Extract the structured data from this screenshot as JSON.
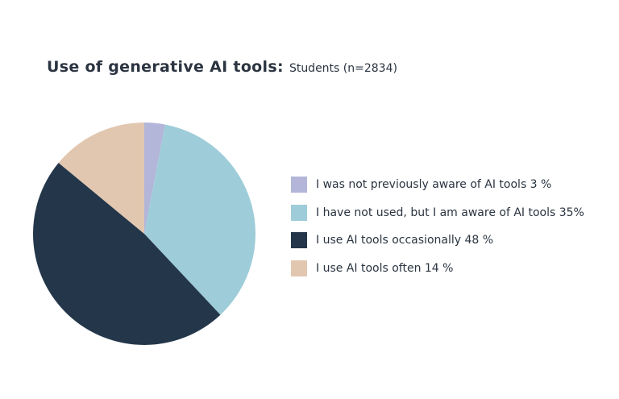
{
  "title": {
    "main": "Use of generative AI tools:",
    "sub": "Students (n=2834)"
  },
  "chart_data": {
    "type": "pie",
    "title": "Use of generative AI tools: Students (n=2834)",
    "start_angle_deg": 0,
    "direction": "clockwise",
    "legend_placement": "right",
    "slices": [
      {
        "label": "I was not previously aware of AI tools 3 %",
        "value": 3,
        "color": "#b3b5d9"
      },
      {
        "label": "I have not used, but I am aware of AI tools 35%",
        "value": 35,
        "color": "#9ecdd9"
      },
      {
        "label": "I use AI tools occasionally 48 %",
        "value": 48,
        "color": "#24374a"
      },
      {
        "label": "I use AI tools often 14 %",
        "value": 14,
        "color": "#e2c7b0"
      }
    ]
  }
}
